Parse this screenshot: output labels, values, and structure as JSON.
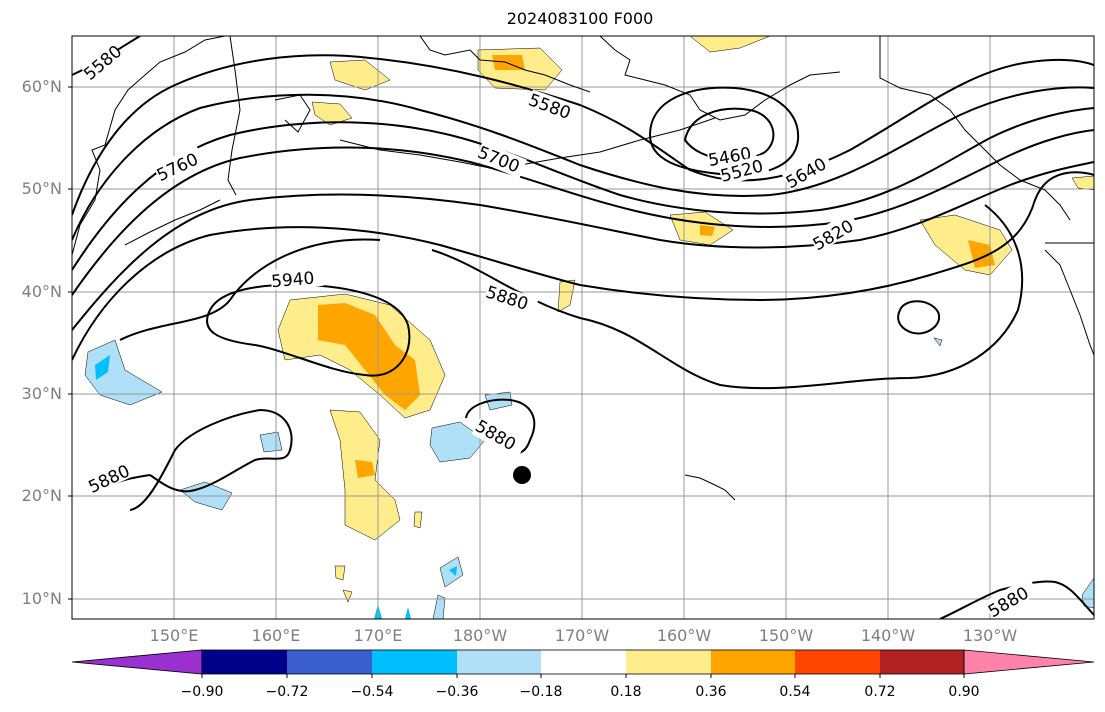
{
  "title": "2024083100 F000",
  "lat_labels": [
    "60°N",
    "50°N",
    "40°N",
    "30°N",
    "20°N",
    "10°N"
  ],
  "lon_labels": [
    "150°E",
    "160°E",
    "170°E",
    "180°W",
    "170°W",
    "160°W",
    "150°W",
    "140°W",
    "130°W"
  ],
  "contour_labels": [
    "5580",
    "5580",
    "5760",
    "5700",
    "5460",
    "5520",
    "5640",
    "5820",
    "5940",
    "5880",
    "5880",
    "5880",
    "5880"
  ],
  "colorbar": {
    "ticks": [
      "−0.90",
      "−0.72",
      "−0.54",
      "−0.36",
      "−0.18",
      "0.18",
      "0.36",
      "0.54",
      "0.72",
      "0.90"
    ],
    "colors": [
      "#9b30d0",
      "#00008b",
      "#3a5fcd",
      "#00bfff",
      "#b0e0f8",
      "#ffffff",
      "#ffec8b",
      "#ffa500",
      "#ff4500",
      "#b22222",
      "#ff82ab"
    ]
  },
  "colors": {
    "positive_light": "#ffec8b",
    "positive_medium": "#ffa500",
    "negative_light": "#b0e0f8",
    "negative_medium": "#00bfff",
    "grid": "#999999",
    "coast": "#000000"
  },
  "marker": "storm-center-dot"
}
